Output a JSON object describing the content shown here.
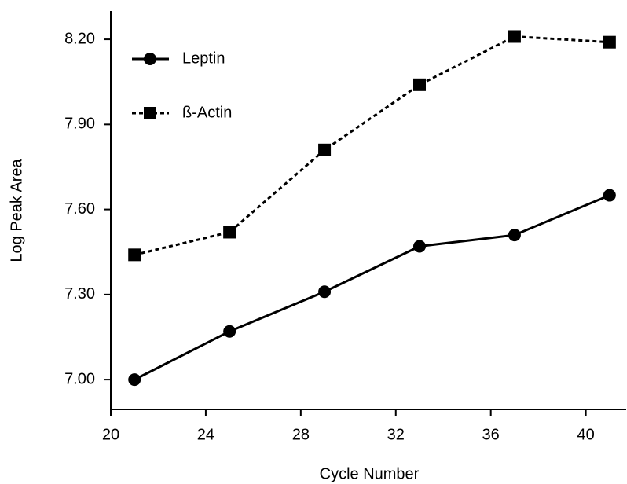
{
  "chart_data": {
    "type": "line",
    "x_label": "Cycle Number",
    "y_label": "Log Peak Area",
    "x": [
      21,
      25,
      29,
      33,
      37,
      41
    ],
    "series": [
      {
        "name": "Leptin",
        "color": "#000000",
        "line_style": "solid",
        "marker": "circle",
        "values": [
          7.0,
          7.17,
          7.31,
          7.47,
          7.51,
          7.65
        ]
      },
      {
        "name": "ß-Actin",
        "color": "#000000",
        "line_style": "dotted",
        "marker": "square",
        "values": [
          7.44,
          7.52,
          7.81,
          8.04,
          8.21,
          8.19
        ]
      }
    ],
    "xlim": [
      20,
      41.7
    ],
    "ylim": [
      6.895,
      8.3
    ],
    "xticks": [
      20,
      24,
      28,
      32,
      36,
      40
    ],
    "yticks": [
      {
        "value": 7.0,
        "label": "7.00"
      },
      {
        "value": 7.3,
        "label": "7.30"
      },
      {
        "value": 7.6,
        "label": "7.60"
      },
      {
        "value": 7.9,
        "label": "7.90"
      },
      {
        "value": 8.2,
        "label": "8.20"
      }
    ],
    "grid": false,
    "legend": "upper left"
  }
}
